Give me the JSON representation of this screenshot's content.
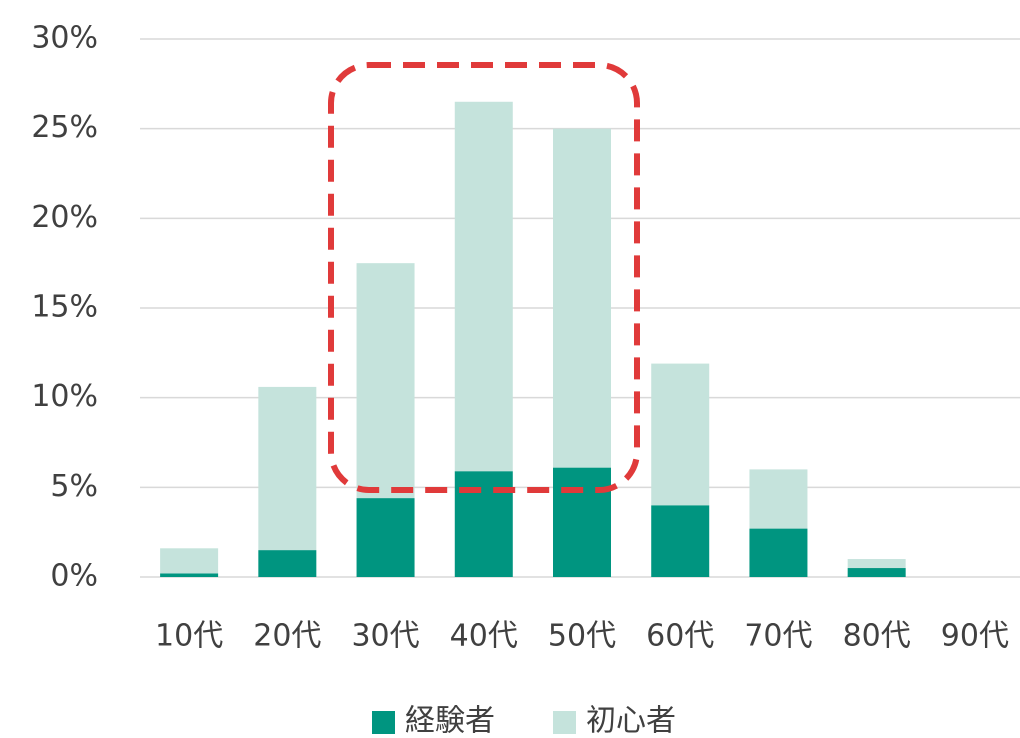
{
  "chart_data": {
    "type": "stacked-bar",
    "categories": [
      "10代",
      "20代",
      "30代",
      "40代",
      "50代",
      "60代",
      "70代",
      "80代",
      "90代"
    ],
    "series": [
      {
        "name": "経験者",
        "color": "#009580",
        "values": [
          0.2,
          1.5,
          4.4,
          5.9,
          6.1,
          4.0,
          2.7,
          0.5,
          0
        ]
      },
      {
        "name": "初心者",
        "color": "#c5e3dc",
        "values": [
          1.4,
          9.1,
          13.1,
          20.6,
          18.9,
          7.9,
          3.3,
          0.5,
          0
        ]
      }
    ],
    "ylim": [
      0,
      30
    ],
    "yticks": [
      {
        "value": 0,
        "label": "0%"
      },
      {
        "value": 5,
        "label": "5%"
      },
      {
        "value": 10,
        "label": "10%"
      },
      {
        "value": 15,
        "label": "15%"
      },
      {
        "value": 20,
        "label": "20%"
      },
      {
        "value": 25,
        "label": "25%"
      },
      {
        "value": 30,
        "label": "30%"
      }
    ],
    "grid": true,
    "legend": "bottom"
  }
}
